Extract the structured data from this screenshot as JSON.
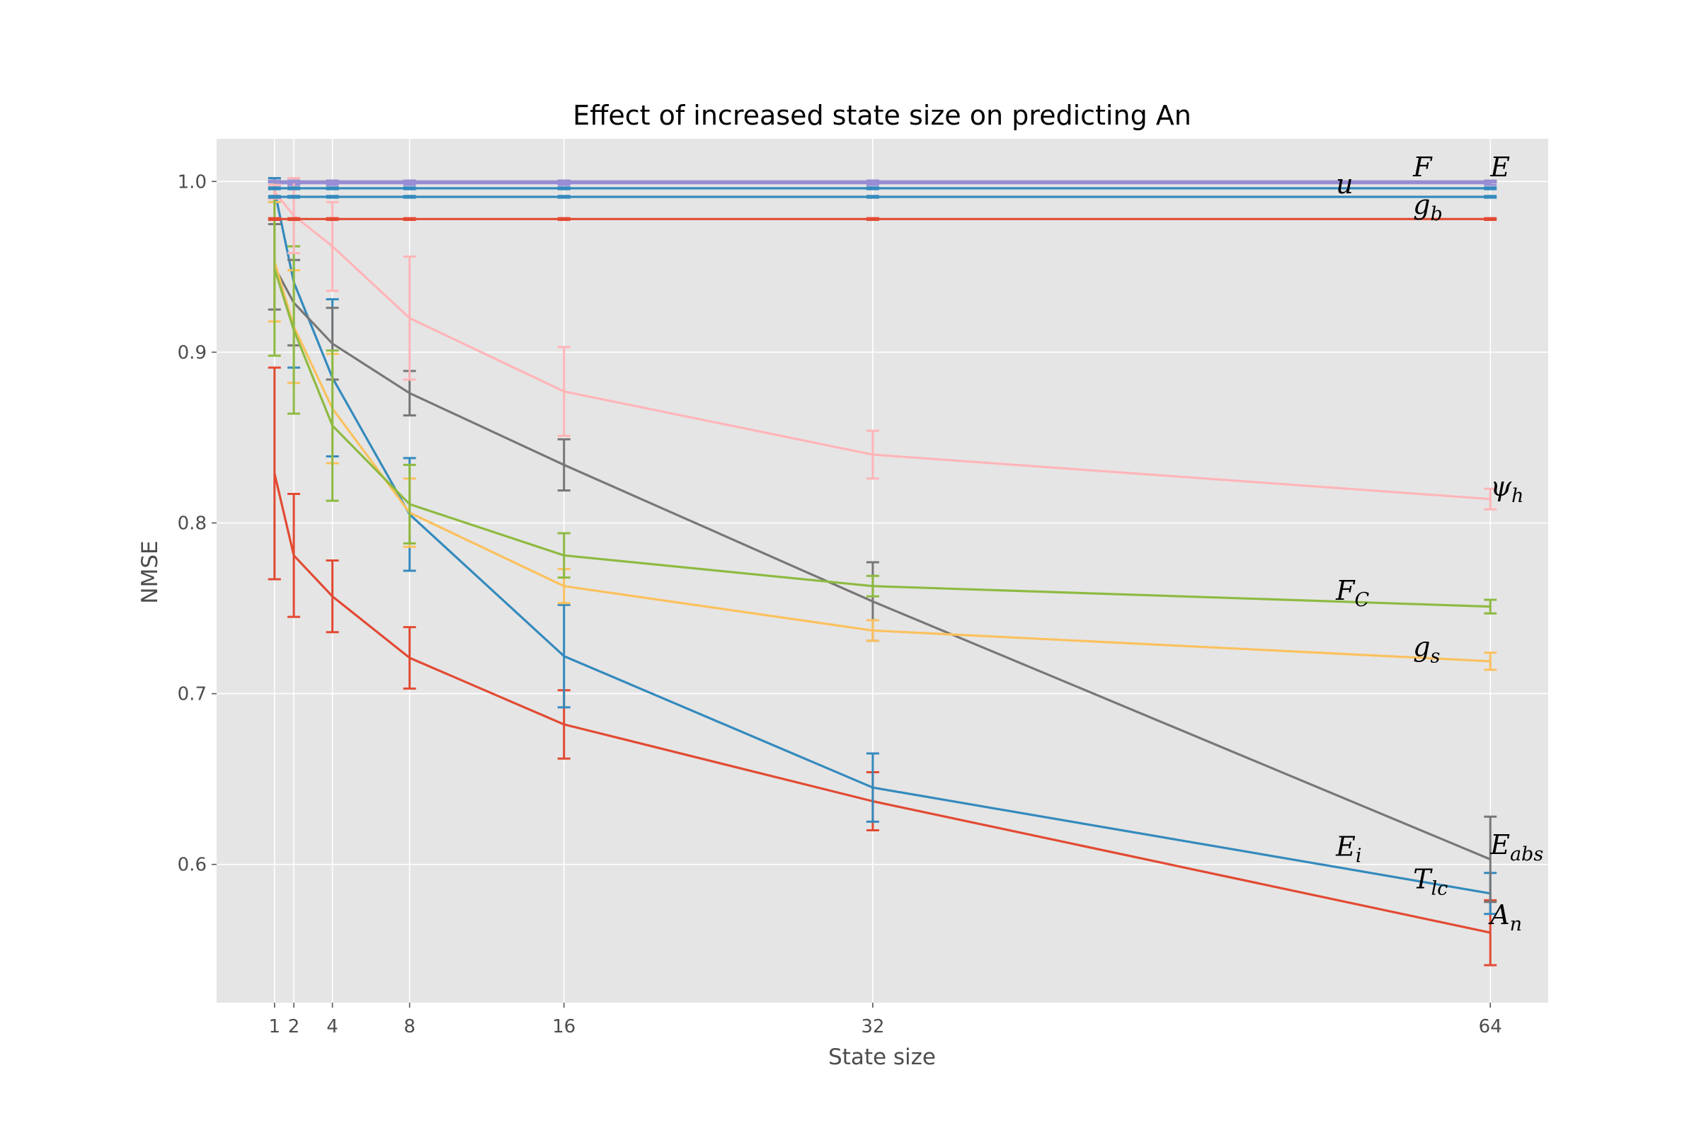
{
  "chart_data": {
    "type": "line",
    "title": "Effect of increased state size on predicting An",
    "xlabel": "State size",
    "ylabel": "NMSE",
    "x": [
      1,
      2,
      4,
      8,
      16,
      32,
      64
    ],
    "xticks": [
      "1",
      "2",
      "4",
      "8",
      "16",
      "32",
      "64"
    ],
    "yticks": [
      "0.6",
      "0.7",
      "0.8",
      "0.9",
      "1.0"
    ],
    "ytick_values": [
      0.6,
      0.7,
      0.8,
      0.9,
      1.0
    ],
    "xlim": [
      -2,
      67
    ],
    "ylim": [
      0.519,
      1.025
    ],
    "grid": true,
    "series": [
      {
        "color": "#e24a33",
        "values": [
          0.829,
          0.781,
          0.757,
          0.721,
          0.682,
          0.637,
          0.56
        ],
        "err": [
          0.062,
          0.036,
          0.021,
          0.018,
          0.02,
          0.017,
          0.019
        ],
        "label": {
          "main": "A",
          "sub": "n",
          "x": 64,
          "y": 0.565
        }
      },
      {
        "color": "#348abd",
        "values": [
          0.995,
          0.941,
          0.885,
          0.805,
          0.722,
          0.645,
          0.583
        ],
        "err": [
          0.007,
          0.05,
          0.046,
          0.033,
          0.03,
          0.02,
          0.012
        ],
        "label": {
          "main": "T",
          "sub": "lc",
          "x": 60,
          "y": 0.586
        }
      },
      {
        "color": "#988ed5",
        "values": [
          0.999,
          0.999,
          0.999,
          0.999,
          0.999,
          0.999,
          0.999
        ],
        "err": [
          0.001,
          0.001,
          0.001,
          0.001,
          0.001,
          0.001,
          0.001
        ],
        "label": {
          "main": "",
          "sub": "",
          "x": 0,
          "y": 0
        }
      },
      {
        "color": "#777777",
        "values": [
          0.95,
          0.929,
          0.905,
          0.876,
          0.834,
          0.754,
          0.603
        ],
        "err": [
          0.025,
          0.025,
          0.021,
          0.013,
          0.015,
          0.023,
          0.025
        ],
        "label": {
          "main": "E",
          "sub": "abs",
          "x": 64,
          "y": 0.606
        }
      },
      {
        "color": "#fbc15e",
        "values": [
          0.953,
          0.915,
          0.867,
          0.806,
          0.763,
          0.737,
          0.719
        ],
        "err": [
          0.035,
          0.033,
          0.032,
          0.02,
          0.01,
          0.006,
          0.005
        ],
        "label": {
          "main": "g",
          "sub": "s",
          "x": 60,
          "y": 0.722
        }
      },
      {
        "color": "#8eba42",
        "values": [
          0.949,
          0.913,
          0.857,
          0.811,
          0.781,
          0.763,
          0.751
        ],
        "err": [
          0.051,
          0.049,
          0.044,
          0.023,
          0.013,
          0.006,
          0.004
        ],
        "label": {
          "main": "F",
          "sub": "C",
          "x": 56,
          "y": 0.755
        }
      },
      {
        "color": "#ffb5b8",
        "values": [
          0.994,
          0.98,
          0.962,
          0.92,
          0.877,
          0.84,
          0.814
        ],
        "err": [
          0.004,
          0.022,
          0.026,
          0.036,
          0.026,
          0.014,
          0.006
        ],
        "label": {
          "main": "ψ",
          "sub": "h",
          "x": 64,
          "y": 0.816
        }
      },
      {
        "color": "#e24a33",
        "values": [
          0.978,
          0.978,
          0.978,
          0.978,
          0.978,
          0.978,
          0.978
        ],
        "err": [
          0.0005,
          0.0005,
          0.0005,
          0.0005,
          0.0005,
          0.0005,
          0.0005
        ],
        "label": {
          "main": "g",
          "sub": "b",
          "x": 60,
          "y": 0.981
        }
      },
      {
        "color": "#348abd",
        "values": [
          0.991,
          0.991,
          0.991,
          0.991,
          0.991,
          0.991,
          0.991
        ],
        "err": [
          0.0005,
          0.0005,
          0.0005,
          0.0005,
          0.0005,
          0.0005,
          0.0005
        ],
        "label": {
          "main": "u",
          "sub": "",
          "x": 56,
          "y": 0.993
        }
      },
      {
        "color": "#777777",
        "values": [
          1.0,
          1.0,
          1.0,
          1.0,
          1.0,
          1.0,
          1.0
        ],
        "err": [
          0.0005,
          0.0005,
          0.0005,
          0.0005,
          0.0005,
          0.0005,
          0.0005
        ],
        "label": {
          "main": "F",
          "sub": "",
          "x": 60,
          "y": 1.003
        }
      },
      {
        "color": "#988ed5",
        "values": [
          1.0,
          1.0,
          1.0,
          1.0,
          1.0,
          1.0,
          1.0
        ],
        "err": [
          0.0005,
          0.0005,
          0.0005,
          0.0005,
          0.0005,
          0.0005,
          0.0005
        ],
        "label": {
          "main": "E",
          "sub": "",
          "x": 64,
          "y": 1.003
        }
      },
      {
        "color": "#348abd",
        "values": [
          0.996,
          0.996,
          0.996,
          0.996,
          0.996,
          0.996,
          0.996
        ],
        "err": [
          0.0005,
          0.0005,
          0.0005,
          0.0005,
          0.0005,
          0.0005,
          0.0005
        ],
        "label": {
          "main": "E",
          "sub": "i",
          "x": 56,
          "y": 0.605
        }
      }
    ]
  }
}
